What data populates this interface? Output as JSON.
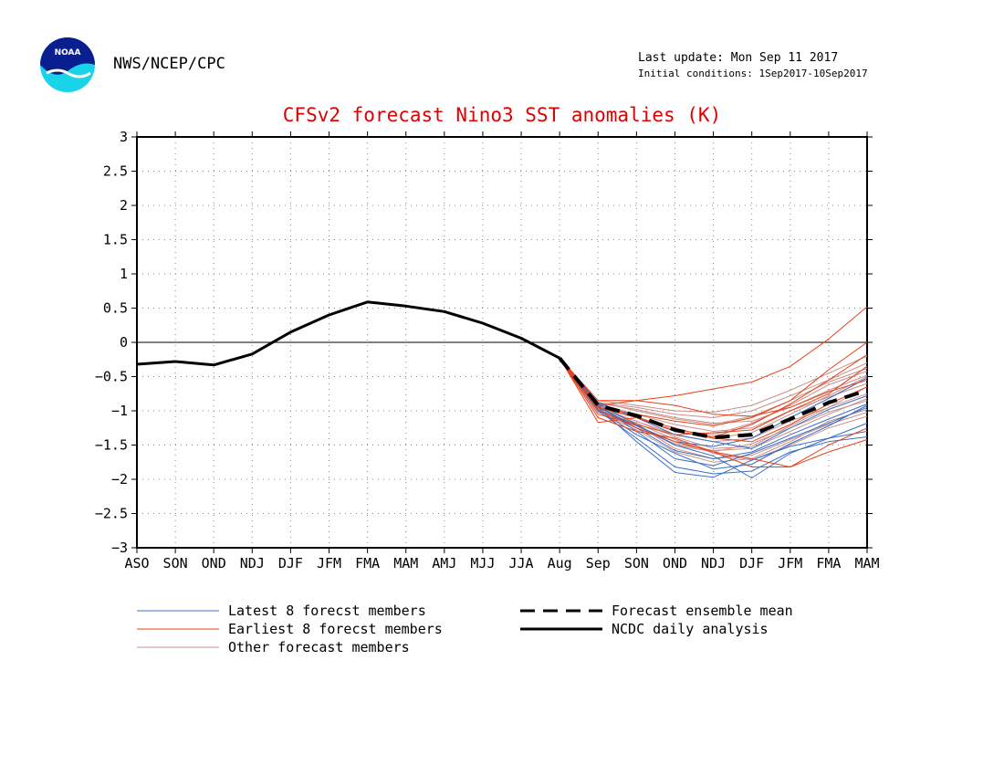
{
  "header": {
    "agency": "NWS/NCEP/CPC",
    "logo_text": "NOAA",
    "last_update": "Last update: Mon Sep 11 2017",
    "initial_conditions": "Initial conditions: 1Sep2017-10Sep2017"
  },
  "chart_data": {
    "type": "line",
    "title": "CFSv2 forecast Nino3 SST anomalies (K)",
    "xlabel": "",
    "ylabel": "",
    "categories": [
      "ASO",
      "SON",
      "OND",
      "NDJ",
      "DJF",
      "JFM",
      "FMA",
      "MAM",
      "AMJ",
      "MJJ",
      "JJA",
      "Aug",
      "Sep",
      "SON",
      "OND",
      "NDJ",
      "DJF",
      "JFM",
      "FMA",
      "MAM"
    ],
    "ylim": [
      -3,
      3
    ],
    "yticks": [
      3,
      2.5,
      2,
      1.5,
      1,
      0.5,
      0,
      -0.5,
      -1,
      -1.5,
      -2,
      -2.5,
      -3
    ],
    "ytick_labels": [
      "3",
      "2.5",
      "2",
      "1.5",
      "1",
      "0.5",
      "0",
      "−0.5",
      "−1",
      "−1.5",
      "−2",
      "−2.5",
      "−3"
    ],
    "grid": true,
    "zero_line": true,
    "legend_placement": "bottom",
    "colors": {
      "latest": "#3b6fc6",
      "earliest": "#e8401a",
      "other": "#c9908a",
      "mean": "#000000",
      "analysis": "#000000",
      "title": "#e00000"
    },
    "series": [
      {
        "name": "NCDC daily analysis",
        "style": "solid-bold",
        "points": [
          [
            0,
            -0.32
          ],
          [
            1,
            -0.28
          ],
          [
            2,
            -0.33
          ],
          [
            3,
            -0.17
          ],
          [
            4,
            0.15
          ],
          [
            5,
            0.4
          ],
          [
            6,
            0.59
          ],
          [
            7,
            0.53
          ],
          [
            8,
            0.45
          ],
          [
            9,
            0.28
          ],
          [
            10,
            0.06
          ],
          [
            11,
            -0.23
          ]
        ]
      },
      {
        "name": "Forecast ensemble mean",
        "style": "dashed-bold",
        "points": [
          [
            11,
            -0.23
          ],
          [
            12,
            -0.92
          ],
          [
            13,
            -1.07
          ],
          [
            14,
            -1.28
          ],
          [
            15,
            -1.39
          ],
          [
            16,
            -1.35
          ],
          [
            17,
            -1.12
          ],
          [
            18,
            -0.88
          ],
          [
            19,
            -0.7
          ]
        ]
      },
      {
        "name": "Latest 8 forecst members",
        "style": "thin",
        "members": [
          [
            -0.23,
            -0.95,
            -1.45,
            -1.9,
            -1.97,
            -1.72,
            -1.52,
            -1.4,
            -1.3
          ],
          [
            -0.23,
            -1.0,
            -1.4,
            -1.82,
            -1.92,
            -1.88,
            -1.6,
            -1.45,
            -1.38
          ],
          [
            -0.23,
            -0.92,
            -1.3,
            -1.7,
            -1.8,
            -1.62,
            -1.4,
            -1.18,
            -0.95
          ],
          [
            -0.23,
            -0.98,
            -1.35,
            -1.62,
            -1.85,
            -1.78,
            -1.48,
            -1.22,
            -0.92
          ],
          [
            -0.23,
            -0.9,
            -1.2,
            -1.5,
            -1.66,
            -1.98,
            -1.62,
            -1.4,
            -1.18
          ],
          [
            -0.23,
            -0.95,
            -1.22,
            -1.45,
            -1.52,
            -1.4,
            -1.1,
            -0.82,
            -0.52
          ],
          [
            -0.23,
            -0.88,
            -1.1,
            -1.35,
            -1.45,
            -1.55,
            -1.25,
            -0.98,
            -0.78
          ],
          [
            -0.23,
            -0.93,
            -1.25,
            -1.58,
            -1.7,
            -1.6,
            -1.35,
            -1.12,
            -0.9
          ]
        ]
      },
      {
        "name": "Earliest 8 forecst members",
        "style": "thin",
        "members": [
          [
            -0.23,
            -0.85,
            -0.85,
            -0.78,
            -0.68,
            -0.58,
            -0.35,
            0.05,
            0.52
          ],
          [
            -0.23,
            -1.17,
            -1.1,
            -1.3,
            -1.38,
            -1.2,
            -0.9,
            -0.55,
            -0.18
          ],
          [
            -0.23,
            -0.95,
            -1.05,
            -1.15,
            -1.22,
            -1.1,
            -0.85,
            -0.4,
            0.0
          ],
          [
            -0.23,
            -0.98,
            -1.25,
            -1.45,
            -1.6,
            -1.7,
            -1.82,
            -1.6,
            -1.42
          ],
          [
            -0.23,
            -1.1,
            -1.3,
            -1.4,
            -1.6,
            -1.82,
            -1.82,
            -1.5,
            -1.25
          ],
          [
            -0.23,
            -0.92,
            -0.85,
            -0.92,
            -1.05,
            -1.08,
            -0.95,
            -0.72,
            -0.55
          ],
          [
            -0.23,
            -0.95,
            -1.1,
            -1.25,
            -1.4,
            -1.45,
            -1.2,
            -0.9,
            -0.65
          ],
          [
            -0.23,
            -1.05,
            -1.2,
            -1.35,
            -1.32,
            -1.28,
            -1.0,
            -0.75,
            -0.35
          ]
        ]
      },
      {
        "name": "Other forecast members",
        "style": "thin",
        "members": [
          [
            -0.23,
            -0.88,
            -0.95,
            -1.05,
            -1.1,
            -1.0,
            -0.78,
            -0.55,
            -0.3
          ],
          [
            -0.23,
            -0.9,
            -1.05,
            -1.2,
            -1.3,
            -1.25,
            -1.0,
            -0.8,
            -0.6
          ],
          [
            -0.23,
            -0.95,
            -1.15,
            -1.35,
            -1.45,
            -1.4,
            -1.15,
            -0.95,
            -0.75
          ],
          [
            -0.23,
            -1.0,
            -1.25,
            -1.48,
            -1.58,
            -1.55,
            -1.3,
            -1.05,
            -0.82
          ],
          [
            -0.23,
            -0.85,
            -0.92,
            -1.0,
            -1.02,
            -0.92,
            -0.7,
            -0.45,
            -0.2
          ],
          [
            -0.23,
            -0.98,
            -1.2,
            -1.55,
            -1.7,
            -1.65,
            -1.42,
            -1.2,
            -1.02
          ],
          [
            -0.23,
            -0.92,
            -1.1,
            -1.28,
            -1.35,
            -1.18,
            -0.92,
            -0.62,
            -0.42
          ],
          [
            -0.23,
            -0.95,
            -1.18,
            -1.42,
            -1.62,
            -1.72,
            -1.5,
            -1.25,
            -1.08
          ],
          [
            -0.23,
            -0.87,
            -1.0,
            -1.12,
            -1.2,
            -1.08,
            -0.85,
            -0.58,
            -0.38
          ],
          [
            -0.23,
            -1.02,
            -1.28,
            -1.6,
            -1.75,
            -1.7,
            -1.45,
            -1.15,
            -0.98
          ],
          [
            -0.23,
            -0.9,
            -1.08,
            -1.3,
            -1.4,
            -1.32,
            -1.05,
            -0.78,
            -0.5
          ],
          [
            -0.23,
            -0.96,
            -1.15,
            -1.38,
            -1.55,
            -1.52,
            -1.22,
            -0.95,
            -0.65
          ],
          [
            -0.23,
            -0.89,
            -0.98,
            -1.1,
            -1.18,
            -1.15,
            -0.95,
            -0.7,
            -0.48
          ],
          [
            -0.23,
            -0.99,
            -1.22,
            -1.5,
            -1.6,
            -1.48,
            -1.25,
            -1.02,
            -0.85
          ]
        ]
      }
    ],
    "legend": [
      {
        "label": "Latest 8 forecst members",
        "style": "thin",
        "color": "#3b6fc6"
      },
      {
        "label": "Earliest 8 forecst members",
        "style": "thin",
        "color": "#e8401a"
      },
      {
        "label": "Other forecast members",
        "style": "thin",
        "color": "#c9908a"
      },
      {
        "label": "Forecast ensemble mean",
        "style": "dashed-bold",
        "color": "#000000"
      },
      {
        "label": "NCDC daily analysis",
        "style": "solid-bold",
        "color": "#000000"
      }
    ]
  }
}
